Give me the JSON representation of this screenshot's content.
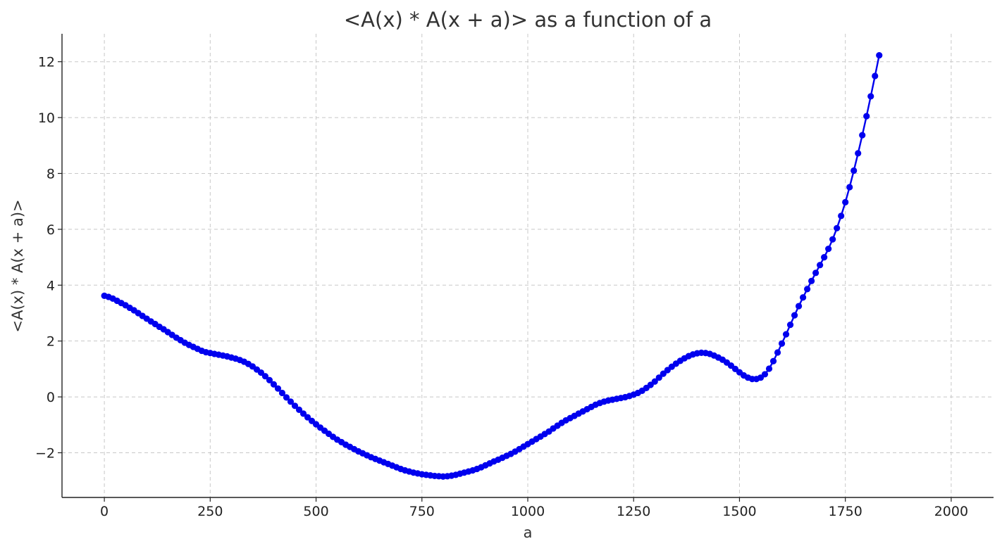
{
  "chart_data": {
    "type": "line",
    "title": "<A(x) * A(x + a)> as a function of a",
    "xlabel": "a",
    "ylabel": "<A(x) * A(x + a)>",
    "xlim": [
      -100,
      2100
    ],
    "ylim": [
      -3.6,
      13.0
    ],
    "xticks": [
      0,
      250,
      500,
      750,
      1000,
      1250,
      1500,
      1750,
      2000
    ],
    "yticks": [
      -2,
      0,
      2,
      4,
      6,
      8,
      10,
      12
    ],
    "xtick_labels": [
      "0",
      "250",
      "500",
      "750",
      "1000",
      "1250",
      "1500",
      "1750",
      "2000"
    ],
    "ytick_labels": [
      "−2",
      "0",
      "2",
      "4",
      "6",
      "8",
      "10",
      "12"
    ],
    "grid": true,
    "marker": "circle",
    "series": [
      {
        "color": "#0000ee",
        "x_start": 0,
        "x_step": 10,
        "values": [
          3.62,
          3.58,
          3.52,
          3.44,
          3.36,
          3.28,
          3.19,
          3.1,
          3.0,
          2.9,
          2.8,
          2.7,
          2.61,
          2.51,
          2.42,
          2.32,
          2.22,
          2.12,
          2.03,
          1.94,
          1.86,
          1.79,
          1.72,
          1.65,
          1.6,
          1.57,
          1.54,
          1.51,
          1.48,
          1.45,
          1.41,
          1.37,
          1.32,
          1.26,
          1.18,
          1.09,
          0.98,
          0.87,
          0.74,
          0.6,
          0.45,
          0.3,
          0.14,
          -0.02,
          -0.17,
          -0.32,
          -0.46,
          -0.6,
          -0.73,
          -0.86,
          -0.98,
          -1.1,
          -1.21,
          -1.32,
          -1.43,
          -1.53,
          -1.62,
          -1.71,
          -1.79,
          -1.87,
          -1.95,
          -2.02,
          -2.09,
          -2.16,
          -2.22,
          -2.28,
          -2.34,
          -2.4,
          -2.46,
          -2.52,
          -2.58,
          -2.63,
          -2.67,
          -2.71,
          -2.74,
          -2.77,
          -2.79,
          -2.81,
          -2.83,
          -2.84,
          -2.85,
          -2.84,
          -2.82,
          -2.79,
          -2.75,
          -2.71,
          -2.67,
          -2.63,
          -2.58,
          -2.52,
          -2.45,
          -2.38,
          -2.31,
          -2.25,
          -2.18,
          -2.11,
          -2.04,
          -1.96,
          -1.87,
          -1.78,
          -1.69,
          -1.6,
          -1.51,
          -1.42,
          -1.33,
          -1.24,
          -1.13,
          -1.03,
          -0.93,
          -0.84,
          -0.76,
          -0.68,
          -0.6,
          -0.52,
          -0.44,
          -0.36,
          -0.28,
          -0.22,
          -0.17,
          -0.13,
          -0.1,
          -0.07,
          -0.04,
          -0.01,
          0.03,
          0.08,
          0.14,
          0.22,
          0.32,
          0.43,
          0.55,
          0.69,
          0.83,
          0.96,
          1.08,
          1.19,
          1.29,
          1.38,
          1.46,
          1.52,
          1.56,
          1.58,
          1.57,
          1.54,
          1.48,
          1.41,
          1.33,
          1.23,
          1.12,
          1.0,
          0.88,
          0.77,
          0.69,
          0.64,
          0.64,
          0.69,
          0.81,
          1.01,
          1.28,
          1.59,
          1.91,
          2.24,
          2.58,
          2.92,
          3.25,
          3.56,
          3.86,
          4.15,
          4.44,
          4.72,
          5.0,
          5.3,
          5.64,
          6.04,
          6.48,
          6.97,
          7.51,
          8.1,
          8.72,
          9.37,
          10.05,
          10.76,
          11.49,
          12.23
        ]
      }
    ]
  }
}
